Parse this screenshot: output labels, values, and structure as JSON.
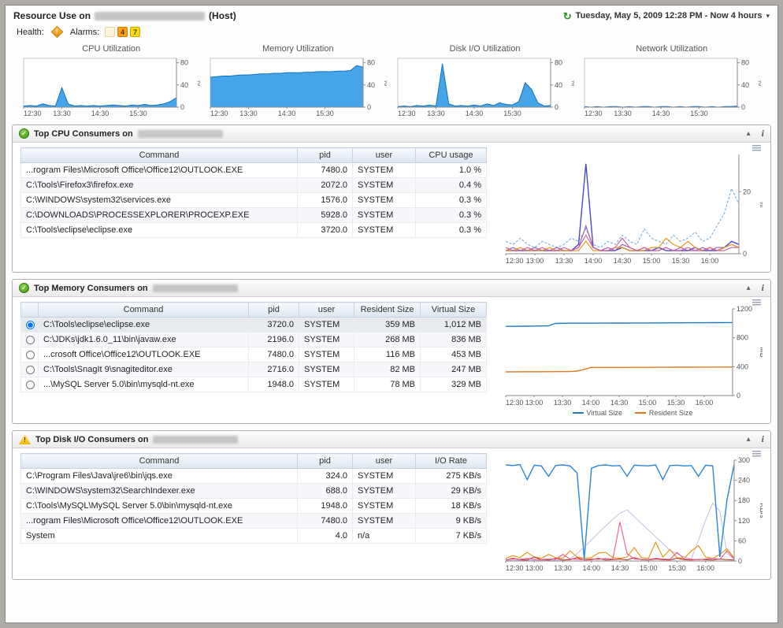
{
  "header": {
    "title_prefix": "Resource Use on",
    "title_suffix": "(Host)",
    "time_label": "Tuesday, May 5, 2009 12:28 PM - Now 4 hours"
  },
  "icons": {
    "clock": "↻",
    "caret": "▾",
    "collapse": "▴",
    "info": "i",
    "ok": "✓",
    "warning": "!"
  },
  "health": {
    "health_label": "Health:",
    "alarms_label": "Alarms:",
    "badges": [
      {
        "count": "",
        "bg": "#fdf4da",
        "border": "#e3d49c",
        "fg": "#7a6a30"
      },
      {
        "count": "4",
        "bg": "#ffa013",
        "border": "#cf7d00",
        "fg": "#503700"
      },
      {
        "count": "7",
        "bg": "#ffd816",
        "border": "#cfa900",
        "fg": "#504400"
      }
    ]
  },
  "sparklines": [
    {
      "title": "CPU Utilization",
      "type": "area",
      "ymax": 88,
      "yticks": [
        0,
        40,
        80
      ],
      "ylabel": "%",
      "xlabels": [
        "12:30",
        "13:30",
        "14:30",
        "15:30"
      ],
      "series": [
        {
          "name": "cpu",
          "color": "#1272c0",
          "fill": "#3ca0e8",
          "width": 1,
          "values": [
            2,
            3,
            2,
            6,
            3,
            2,
            35,
            6,
            2,
            3,
            2,
            3,
            2,
            3,
            4,
            3,
            2,
            4,
            3,
            5,
            3,
            4,
            6,
            10,
            17
          ]
        }
      ]
    },
    {
      "title": "Memory Utilization",
      "type": "area",
      "ymax": 88,
      "yticks": [
        0,
        40,
        80
      ],
      "ylabel": "%",
      "xlabels": [
        "12:30",
        "13:30",
        "14:30",
        "15:30"
      ],
      "series": [
        {
          "name": "memory",
          "color": "#1272c0",
          "fill": "#3ca0e8",
          "width": 1,
          "values": [
            54,
            55,
            56,
            56,
            57,
            58,
            58,
            59,
            60,
            60,
            61,
            61,
            62,
            62,
            62,
            63,
            63,
            64,
            64,
            64,
            65,
            65,
            66,
            75,
            72
          ]
        }
      ]
    },
    {
      "title": "Disk I/O Utilization",
      "type": "area",
      "ymax": 88,
      "yticks": [
        0,
        40,
        80
      ],
      "ylabel": "%",
      "xlabels": [
        "12:30",
        "13:30",
        "14:30",
        "15:30"
      ],
      "series": [
        {
          "name": "disk",
          "color": "#1272c0",
          "fill": "#3ca0e8",
          "width": 1,
          "values": [
            1,
            2,
            1,
            3,
            2,
            4,
            2,
            78,
            6,
            2,
            3,
            2,
            4,
            2,
            6,
            3,
            8,
            5,
            4,
            10,
            44,
            32,
            8,
            2,
            3
          ]
        }
      ]
    },
    {
      "title": "Network Utilization",
      "type": "area",
      "ymax": 88,
      "yticks": [
        0,
        40,
        80
      ],
      "ylabel": "%",
      "xlabels": [
        "12:30",
        "13:30",
        "14:30",
        "15:30"
      ],
      "series": [
        {
          "name": "network",
          "color": "#1272c0",
          "fill": "#3ca0e8",
          "width": 1,
          "values": [
            1,
            0,
            1,
            0,
            1,
            1,
            0,
            1,
            0,
            1,
            1,
            0,
            1,
            1,
            0,
            1,
            0,
            1,
            1,
            0,
            1,
            0,
            1,
            1,
            2
          ]
        }
      ]
    }
  ],
  "panels": [
    {
      "title": "Top CPU Consumers on",
      "status_icon": "ok-check-icon",
      "table": {
        "columns": [
          "Command",
          "pid",
          "user",
          "CPU usage"
        ],
        "rows": [
          [
            "...rogram Files\\Microsoft Office\\Office12\\OUTLOOK.EXE",
            "7480.0",
            "SYSTEM",
            "1.0 %"
          ],
          [
            "C:\\Tools\\Firefox3\\firefox.exe",
            "2072.0",
            "SYSTEM",
            "0.4 %"
          ],
          [
            "C:\\WINDOWS\\system32\\services.exe",
            "1576.0",
            "SYSTEM",
            "0.3 %"
          ],
          [
            "C:\\DOWNLOADS\\PROCESSEXPLORER\\PROCEXP.EXE",
            "5928.0",
            "SYSTEM",
            "0.3 %"
          ],
          [
            "C:\\Tools\\eclipse\\eclipse.exe",
            "3720.0",
            "SYSTEM",
            "0.3 %"
          ]
        ]
      },
      "chart": {
        "type": "line",
        "ymax": 32,
        "yticks": [
          0,
          20
        ],
        "ylabel": "%",
        "xlabels": [
          "12:30",
          "13:00",
          "13:30",
          "14:00",
          "14:30",
          "15:00",
          "15:30",
          "16:00"
        ],
        "series": [
          {
            "name": "OUTLOOK.EXE",
            "color": "#74aede",
            "dash": true,
            "width": 1.1,
            "values": [
              4,
              3,
              5,
              3,
              2,
              4,
              3,
              2,
              3,
              5,
              4,
              8,
              3,
              2,
              4,
              3,
              6,
              4,
              3,
              8,
              5,
              4,
              3,
              6,
              4,
              5,
              7,
              4,
              5,
              9,
              13,
              21,
              16
            ]
          },
          {
            "name": "firefox.exe",
            "color": "#4b49c9",
            "width": 1.4,
            "values": [
              1,
              1,
              1,
              1,
              1,
              1,
              1,
              1,
              1,
              1,
              3,
              29,
              2,
              1,
              1,
              1,
              2,
              1,
              1,
              1,
              1,
              2,
              1,
              1,
              1,
              1,
              2,
              1,
              1,
              1,
              2,
              4,
              3
            ]
          },
          {
            "name": "services.exe",
            "color": "#9b59b6",
            "width": 1.1,
            "values": [
              1,
              2,
              1,
              1,
              2,
              1,
              1,
              2,
              1,
              1,
              2,
              9,
              2,
              1,
              2,
              1,
              3,
              2,
              1,
              2,
              1,
              1,
              2,
              1,
              2,
              1,
              1,
              2,
              1,
              2,
              2,
              3,
              2
            ]
          },
          {
            "name": "PROCEXP.EXE",
            "color": "#e8920c",
            "width": 1.1,
            "values": [
              1,
              1,
              2,
              1,
              1,
              1,
              2,
              1,
              1,
              1,
              1,
              4,
              1,
              1,
              1,
              2,
              2,
              1,
              1,
              1,
              2,
              2,
              5,
              3,
              2,
              4,
              2,
              1,
              2,
              1,
              2,
              3,
              2
            ]
          },
          {
            "name": "eclipse.exe",
            "color": "#d6569b",
            "width": 1.1,
            "values": [
              2,
              1,
              1,
              2,
              1,
              2,
              1,
              1,
              2,
              1,
              2,
              6,
              2,
              1,
              1,
              2,
              5,
              2,
              1,
              2,
              1,
              1,
              2,
              1,
              1,
              2,
              1,
              1,
              2,
              1,
              1,
              2,
              2
            ]
          }
        ]
      }
    },
    {
      "title": "Top Memory Consumers on",
      "status_icon": "ok-check-icon",
      "table": {
        "radio": true,
        "selected": 0,
        "columns": [
          "Command",
          "pid",
          "user",
          "Resident Size",
          "Virtual Size"
        ],
        "rows": [
          [
            "C:\\Tools\\eclipse\\eclipse.exe",
            "3720.0",
            "SYSTEM",
            "359 MB",
            "1,012 MB"
          ],
          [
            "C:\\JDKs\\jdk1.6.0_11\\bin\\javaw.exe",
            "2196.0",
            "SYSTEM",
            "268 MB",
            "836 MB"
          ],
          [
            "...crosoft Office\\Office12\\OUTLOOK.EXE",
            "7480.0",
            "SYSTEM",
            "116 MB",
            "453 MB"
          ],
          [
            "C:\\Tools\\SnagIt 9\\snagiteditor.exe",
            "2716.0",
            "SYSTEM",
            "82 MB",
            "247 MB"
          ],
          [
            "...\\MySQL Server 5.0\\bin\\mysqld-nt.exe",
            "1948.0",
            "SYSTEM",
            "78 MB",
            "329 MB"
          ]
        ]
      },
      "chart": {
        "type": "line",
        "ymax": 1200,
        "yticks": [
          0,
          400,
          800,
          1200
        ],
        "ylabel": "MB",
        "xlabels": [
          "12:30",
          "13:00",
          "13:30",
          "14:00",
          "14:30",
          "15:00",
          "15:30",
          "16:00"
        ],
        "legend": [
          {
            "label": "Virtual Size",
            "color": "#1f7ac9"
          },
          {
            "label": "Resident Size",
            "color": "#e0791f"
          }
        ],
        "series": [
          {
            "name": "Virtual Size",
            "color": "#1f7ac9",
            "width": 1.4,
            "values": [
              958,
              958,
              960,
              960,
              962,
              963,
              964,
              998,
              1000,
              1001,
              1001,
              1002,
              1002,
              1003,
              1003,
              1004,
              1004,
              1004,
              1005,
              1005,
              1005,
              1006,
              1006,
              1007,
              1007,
              1007,
              1008,
              1008,
              1008,
              1009,
              1009,
              1010,
              1010
            ]
          },
          {
            "name": "Resident Size",
            "color": "#e0791f",
            "width": 1.4,
            "values": [
              328,
              328,
              329,
              329,
              330,
              330,
              331,
              331,
              332,
              332,
              338,
              360,
              388,
              389,
              389,
              390,
              390,
              390,
              391,
              391,
              391,
              392,
              392,
              392,
              393,
              393,
              393,
              394,
              394,
              394,
              395,
              395,
              396
            ]
          }
        ]
      }
    },
    {
      "title": "Top Disk I/O Consumers on",
      "status_icon": "warning-triangle-icon",
      "table": {
        "columns": [
          "Command",
          "pid",
          "user",
          "I/O Rate"
        ],
        "rows": [
          [
            "C:\\Program Files\\Java\\jre6\\bin\\jqs.exe",
            "324.0",
            "SYSTEM",
            "275 KB/s"
          ],
          [
            "C:\\WINDOWS\\system32\\SearchIndexer.exe",
            "688.0",
            "SYSTEM",
            "29 KB/s"
          ],
          [
            "C:\\Tools\\MySQL\\MySQL Server 5.0\\bin\\mysqld-nt.exe",
            "1948.0",
            "SYSTEM",
            "18 KB/s"
          ],
          [
            "...rogram Files\\Microsoft Office\\Office12\\OUTLOOK.EXE",
            "7480.0",
            "SYSTEM",
            "9 KB/s"
          ],
          [
            "System",
            "4.0",
            "n/a",
            "7 KB/s"
          ]
        ]
      },
      "chart": {
        "type": "line",
        "ymax": 300,
        "yticks": [
          0,
          60,
          120,
          180,
          240,
          300
        ],
        "ylabel": "KB/s",
        "xlabels": [
          "12:30",
          "13:00",
          "13:30",
          "14:00",
          "14:30",
          "15:00",
          "15:30",
          "16:00"
        ],
        "series": [
          {
            "name": "System",
            "color": "#c3bce6",
            "width": 1,
            "values": [
              2,
              2,
              2,
              2,
              2,
              2,
              2,
              2,
              3,
              6,
              22,
              42,
              62,
              84,
              104,
              124,
              142,
              152,
              132,
              112,
              92,
              72,
              52,
              32,
              22,
              12,
              6,
              62,
              122,
              172,
              148,
              22,
              6
            ]
          },
          {
            "name": "SearchIndexer.exe",
            "color": "#e8920c",
            "width": 1.1,
            "values": [
              8,
              16,
              10,
              26,
              12,
              8,
              20,
              10,
              8,
              30,
              12,
              8,
              10,
              24,
              26,
              10,
              8,
              12,
              40,
              10,
              8,
              56,
              12,
              34,
              10,
              8,
              30,
              46,
              12,
              8,
              20,
              36,
              10
            ]
          },
          {
            "name": "OUTLOOK.EXE",
            "color": "#c0392b",
            "width": 1.1,
            "values": [
              3,
              8,
              4,
              3,
              12,
              4,
              3,
              8,
              3,
              4,
              10,
              3,
              4,
              8,
              3,
              4,
              6,
              3,
              10,
              4,
              3,
              6,
              4,
              3,
              8,
              4,
              3,
              5,
              4,
              3,
              6,
              4,
              3
            ]
          },
          {
            "name": "mysqld-nt.exe",
            "color": "#f05a8a",
            "width": 1.1,
            "values": [
              4,
              6,
              5,
              8,
              5,
              4,
              6,
              5,
              20,
              6,
              5,
              4,
              6,
              5,
              8,
              5,
              116,
              22,
              6,
              5,
              4,
              8,
              6,
              5,
              26,
              6,
              5,
              4,
              6,
              8,
              5,
              30,
              6
            ]
          },
          {
            "name": "jqs.exe",
            "color": "#2b85d8",
            "width": 1.4,
            "values": [
              286,
              284,
              287,
              242,
              285,
              283,
              252,
              284,
              286,
              283,
              262,
              6,
              276,
              284,
              286,
              283,
              284,
              252,
              285,
              284,
              283,
              286,
              242,
              284,
              285,
              283,
              284,
              252,
              285,
              283,
              12,
              182,
              288
            ]
          }
        ]
      }
    }
  ]
}
